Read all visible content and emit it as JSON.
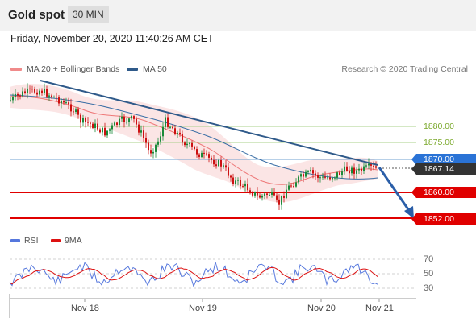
{
  "header": {
    "title": "Gold spot",
    "timeframe": "30 MIN"
  },
  "date_line": "Friday, November 20, 2020 11:40:26 AM CET",
  "legend": {
    "ma20": {
      "label": "MA 20 + Bollinger Bands",
      "color": "#f08a8a"
    },
    "ma50": {
      "label": "MA 50",
      "color": "#2f5a8a"
    },
    "credit": "Research © 2020 Trading Central"
  },
  "levels": {
    "l1880": "1880.00",
    "l1875": "1875.00",
    "l1870": "1870.00",
    "current": "1867.14",
    "l1860": "1860.00",
    "l1852": "1852.00"
  },
  "rsi_legend": {
    "rsi": {
      "label": "RSI",
      "color": "#5577dd"
    },
    "ma9": {
      "label": "9MA",
      "color": "#dd1111"
    }
  },
  "rsi_axis": [
    "70",
    "50",
    "30"
  ],
  "x_axis": [
    "Nov 18",
    "Nov 19",
    "Nov 20",
    "Nov 21"
  ],
  "colors": {
    "up": "#1a8a3a",
    "down": "#cc1111",
    "support": "#e00000",
    "resistance_line": "#3a6ea5",
    "target_green": "#8fbf5a"
  }
}
